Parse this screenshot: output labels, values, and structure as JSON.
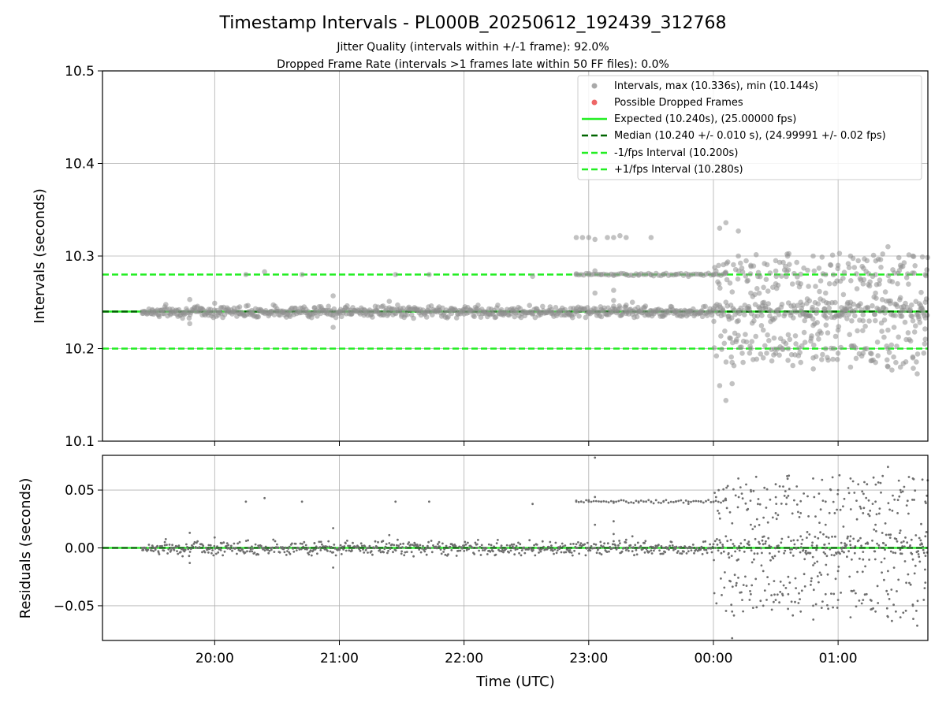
{
  "chart_data": [
    {
      "type": "scatter",
      "title": "Timestamp Intervals - PL000B_20250612_192439_312768",
      "subtitle_lines": [
        "Jitter Quality (intervals within +/-1 frame): 92.0%",
        "Dropped Frame Rate (intervals >1 frames late within 50 FF files): 0.0%"
      ],
      "xlabel": "Time (UTC)",
      "ylabel": "Intervals (seconds)",
      "xlim_hours": [
        19.1,
        25.72
      ],
      "ylim": [
        10.1,
        10.5
      ],
      "yticks": [
        10.1,
        10.2,
        10.3,
        10.4,
        10.5
      ],
      "ytick_labels": [
        "10.1",
        "10.2",
        "10.3",
        "10.4",
        "10.5"
      ],
      "xticks_hours": [
        20,
        21,
        22,
        23,
        24,
        25
      ],
      "xtick_labels": [
        "20:00",
        "21:00",
        "22:00",
        "23:00",
        "00:00",
        "01:00"
      ],
      "grid": true,
      "legend_position": "top-right",
      "legend": [
        {
          "label": "Intervals, max (10.336s), min (10.144s)",
          "kind": "dot",
          "color": "#a0a0a0"
        },
        {
          "label": "Possible Dropped Frames",
          "kind": "dot",
          "color": "#ee6666"
        },
        {
          "label": "Expected (10.240s), (25.00000 fps)",
          "kind": "solid",
          "color": "#22ee22"
        },
        {
          "label": "Median (10.240 +/- 0.010 s), (24.99991 +/- 0.02 fps)",
          "kind": "dashed",
          "color": "#006400"
        },
        {
          "label": "-1/fps Interval (10.200s)",
          "kind": "dashed",
          "color": "#22ee22"
        },
        {
          "label": "+1/fps Interval (10.280s)",
          "kind": "dashed",
          "color": "#22ee22"
        }
      ],
      "reference_lines": [
        {
          "name": "Expected",
          "y": 10.24,
          "style": "solid",
          "color": "#22ee22"
        },
        {
          "name": "Median",
          "y": 10.24,
          "style": "dashed",
          "color": "#006400"
        },
        {
          "name": "-1/fps Interval",
          "y": 10.2,
          "style": "dashed",
          "color": "#22ee22"
        },
        {
          "name": "+1/fps Interval",
          "y": 10.28,
          "style": "dashed",
          "color": "#22ee22"
        }
      ],
      "series_summary": {
        "time_start_hours": 19.42,
        "time_end_hours": 25.72,
        "max_interval": 10.336,
        "min_interval": 10.144,
        "baseline_interval": 10.24,
        "noisy_segment_start_hours": 24.0
      },
      "points": [
        [
          19.42,
          10.24
        ],
        [
          19.5,
          10.242
        ],
        [
          19.55,
          10.236
        ],
        [
          19.6,
          10.245
        ],
        [
          19.65,
          10.238
        ],
        [
          19.7,
          10.241
        ],
        [
          19.75,
          10.239
        ],
        [
          19.8,
          10.253
        ],
        [
          19.8,
          10.227
        ],
        [
          19.85,
          10.24
        ],
        [
          19.9,
          10.243
        ],
        [
          19.95,
          10.236
        ],
        [
          20.0,
          10.249
        ],
        [
          20.05,
          10.238
        ],
        [
          20.1,
          10.244
        ],
        [
          20.15,
          10.24
        ],
        [
          20.2,
          10.245
        ],
        [
          20.25,
          10.28
        ],
        [
          20.3,
          10.237
        ],
        [
          20.35,
          10.242
        ],
        [
          20.4,
          10.283
        ],
        [
          20.45,
          10.24
        ],
        [
          20.5,
          10.243
        ],
        [
          20.55,
          10.239
        ],
        [
          20.6,
          10.241
        ],
        [
          20.7,
          10.28
        ],
        [
          20.75,
          10.24
        ],
        [
          20.8,
          10.244
        ],
        [
          20.85,
          10.238
        ],
        [
          20.9,
          10.241
        ],
        [
          20.95,
          10.257
        ],
        [
          20.95,
          10.223
        ],
        [
          21.0,
          10.24
        ],
        [
          21.05,
          10.244
        ],
        [
          21.1,
          10.238
        ],
        [
          21.2,
          10.242
        ],
        [
          21.3,
          10.24
        ],
        [
          21.35,
          10.246
        ],
        [
          21.4,
          10.251
        ],
        [
          21.45,
          10.28
        ],
        [
          21.5,
          10.237
        ],
        [
          21.6,
          10.242
        ],
        [
          21.7,
          10.24
        ],
        [
          21.72,
          10.28
        ],
        [
          21.8,
          10.245
        ],
        [
          21.9,
          10.238
        ],
        [
          22.0,
          10.242
        ],
        [
          22.1,
          10.24
        ],
        [
          22.2,
          10.243
        ],
        [
          22.3,
          10.237
        ],
        [
          22.4,
          10.243
        ],
        [
          22.55,
          10.278
        ],
        [
          22.6,
          10.24
        ],
        [
          22.7,
          10.242
        ],
        [
          22.85,
          10.238
        ],
        [
          22.9,
          10.32
        ],
        [
          22.95,
          10.32
        ],
        [
          23.0,
          10.32
        ],
        [
          23.05,
          10.318
        ],
        [
          23.15,
          10.32
        ],
        [
          23.2,
          10.32
        ],
        [
          23.25,
          10.322
        ],
        [
          23.3,
          10.32
        ],
        [
          23.5,
          10.32
        ],
        [
          22.9,
          10.28
        ],
        [
          23.0,
          10.28
        ],
        [
          23.05,
          10.284
        ],
        [
          23.1,
          10.28
        ],
        [
          23.2,
          10.28
        ],
        [
          23.3,
          10.28
        ],
        [
          23.4,
          10.28
        ],
        [
          23.5,
          10.28
        ],
        [
          23.6,
          10.28
        ],
        [
          23.7,
          10.28
        ],
        [
          23.8,
          10.28
        ],
        [
          23.9,
          10.28
        ],
        [
          24.0,
          10.28
        ],
        [
          23.05,
          10.26
        ],
        [
          23.2,
          10.263
        ],
        [
          23.2,
          10.252
        ],
        [
          23.25,
          10.244
        ],
        [
          23.3,
          10.247
        ],
        [
          23.35,
          10.25
        ],
        [
          23.45,
          10.236
        ],
        [
          22.9,
          10.24
        ],
        [
          23.0,
          10.24
        ],
        [
          23.1,
          10.242
        ],
        [
          23.2,
          10.24
        ],
        [
          23.3,
          10.238
        ],
        [
          23.4,
          10.24
        ],
        [
          23.5,
          10.241
        ],
        [
          23.6,
          10.24
        ],
        [
          23.7,
          10.24
        ],
        [
          23.8,
          10.24
        ],
        [
          23.9,
          10.24
        ],
        [
          24.05,
          10.33
        ],
        [
          24.1,
          10.336
        ],
        [
          24.05,
          10.16
        ],
        [
          24.1,
          10.144
        ],
        [
          24.15,
          10.162
        ],
        [
          24.2,
          10.327
        ],
        [
          24.2,
          10.3
        ],
        [
          24.3,
          10.29
        ],
        [
          24.5,
          10.295
        ],
        [
          24.6,
          10.285
        ],
        [
          24.7,
          10.27
        ],
        [
          24.8,
          10.3
        ],
        [
          24.9,
          10.28
        ],
        [
          25.0,
          10.29
        ],
        [
          25.1,
          10.3
        ],
        [
          25.2,
          10.27
        ],
        [
          25.3,
          10.28
        ],
        [
          25.4,
          10.31
        ],
        [
          25.5,
          10.29
        ],
        [
          25.6,
          10.3
        ],
        [
          25.7,
          10.28
        ],
        [
          24.15,
          10.185
        ],
        [
          24.3,
          10.2
        ],
        [
          24.4,
          10.19
        ],
        [
          24.5,
          10.195
        ],
        [
          24.6,
          10.2
        ],
        [
          24.7,
          10.185
        ],
        [
          24.8,
          10.19
        ],
        [
          24.9,
          10.2
        ],
        [
          25.0,
          10.195
        ],
        [
          25.1,
          10.18
        ],
        [
          25.2,
          10.195
        ],
        [
          25.3,
          10.185
        ],
        [
          25.4,
          10.2
        ],
        [
          25.5,
          10.18
        ],
        [
          25.6,
          10.19
        ],
        [
          25.7,
          10.21
        ],
        [
          24.1,
          10.25
        ],
        [
          24.2,
          10.23
        ],
        [
          24.3,
          10.26
        ],
        [
          24.4,
          10.22
        ],
        [
          24.5,
          10.27
        ],
        [
          24.6,
          10.215
        ],
        [
          24.7,
          10.25
        ],
        [
          24.8,
          10.225
        ],
        [
          24.9,
          10.26
        ],
        [
          25.0,
          10.22
        ],
        [
          25.1,
          10.25
        ],
        [
          25.2,
          10.23
        ],
        [
          25.3,
          10.26
        ],
        [
          25.4,
          10.22
        ],
        [
          25.5,
          10.255
        ],
        [
          25.6,
          10.23
        ],
        [
          25.7,
          10.25
        ]
      ],
      "seed": 7
    },
    {
      "type": "scatter",
      "title": "",
      "xlabel": "Time (UTC)",
      "ylabel": "Residuals (seconds)",
      "ylim": [
        -0.08,
        0.08
      ],
      "yticks": [
        0.05,
        0.0,
        -0.05
      ],
      "ytick_labels": [
        "0.05",
        "0.00",
        "−0.05"
      ],
      "xticks_hours": [
        20,
        21,
        22,
        23,
        24,
        25
      ],
      "xtick_labels": [
        "20:00",
        "21:00",
        "22:00",
        "23:00",
        "00:00",
        "01:00"
      ],
      "grid": true,
      "reference_lines": [
        {
          "name": "Expected residual",
          "y": 0.0,
          "style": "solid",
          "color": "#22ee22"
        },
        {
          "name": "Median residual",
          "y": 0.0,
          "style": "dashed",
          "color": "#006400"
        }
      ],
      "series_summary": {
        "baseline_residual": 0.0,
        "stripe_residual": 0.04,
        "stripe_start_hours": 22.9,
        "stripe_end_hours": 24.1
      }
    }
  ]
}
